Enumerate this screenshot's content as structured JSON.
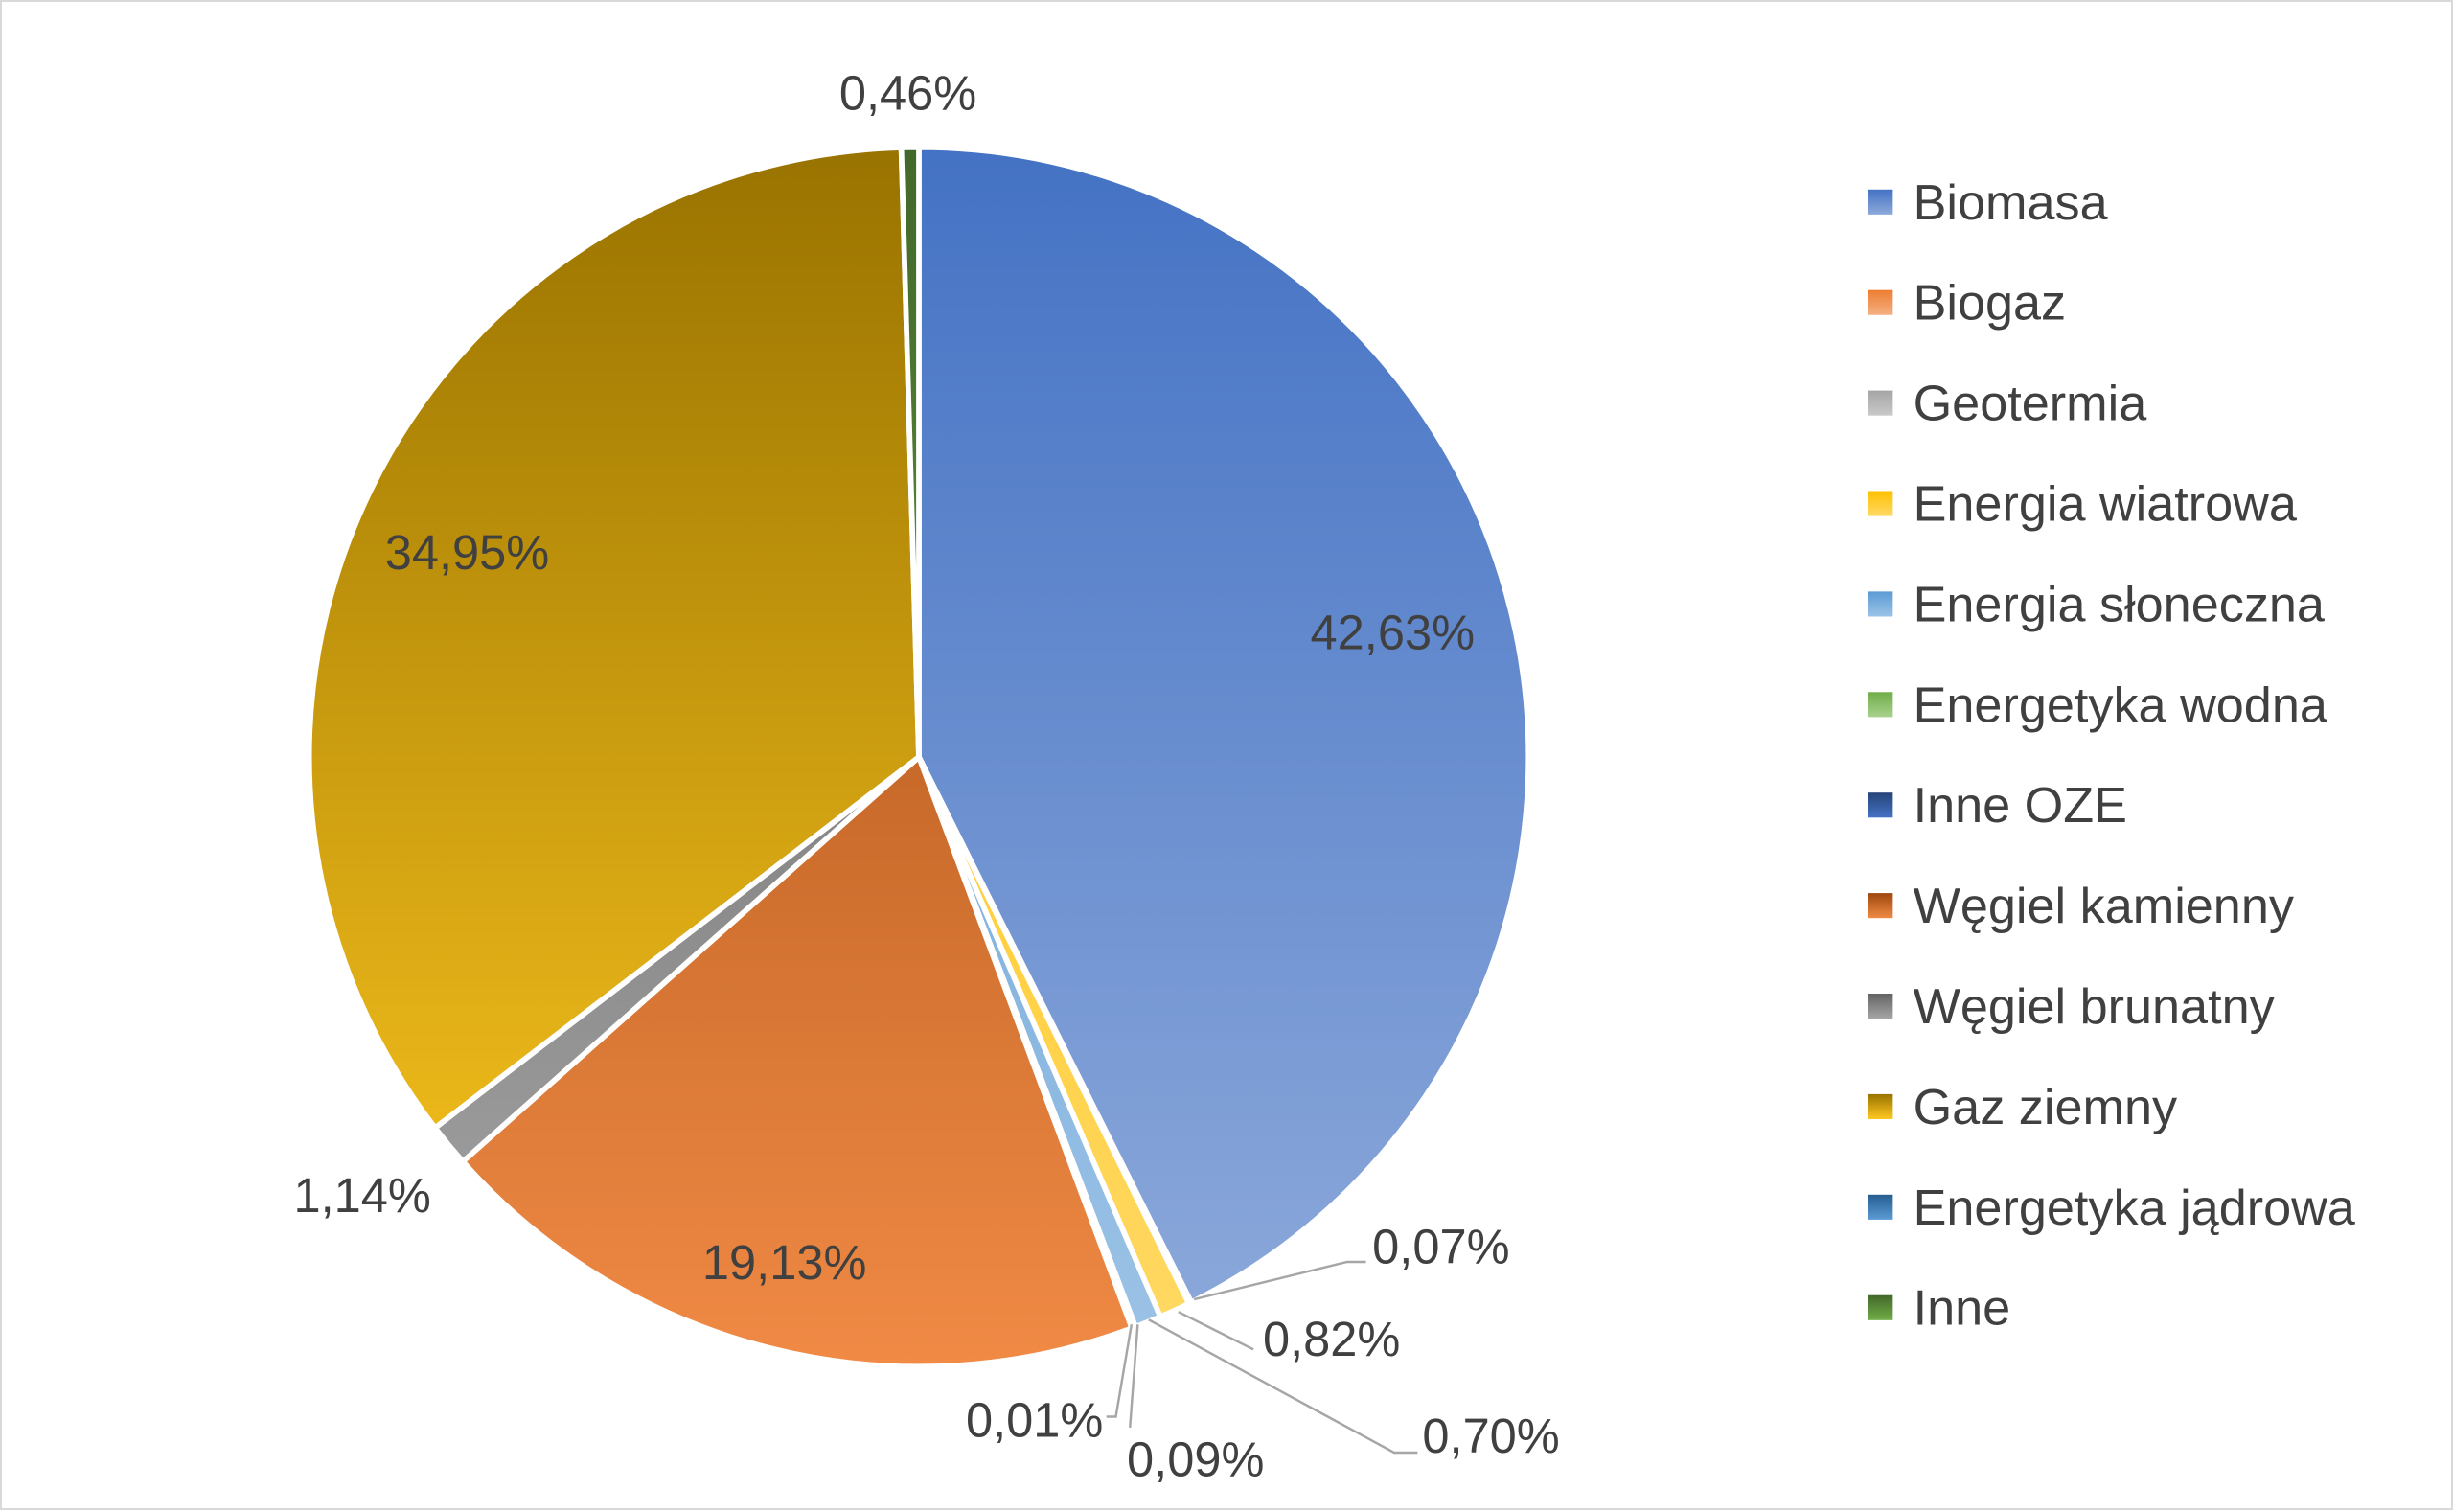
{
  "chart_data": {
    "type": "pie",
    "title": "",
    "legend_position": "right",
    "start_angle": "top, clockwise",
    "slices": [
      {
        "label": "Biomasa",
        "value": 42.63,
        "display": "42,63%",
        "color": "#4472C4",
        "color_light": "#8EAADB"
      },
      {
        "label": "Biogaz",
        "value": 0.07,
        "display": "0,07%",
        "color": "#ED7D31",
        "color_light": "#F4B183"
      },
      {
        "label": "Geotermia",
        "value": 0,
        "display": "",
        "color": "#A5A5A5",
        "color_light": "#C9C9C9"
      },
      {
        "label": "Energia wiatrowa",
        "value": 0.82,
        "display": "0,82%",
        "color": "#FFC000",
        "color_light": "#FFD966"
      },
      {
        "label": "Energia słoneczna",
        "value": 0.7,
        "display": "0,70%",
        "color": "#5B9BD5",
        "color_light": "#9DC3E6"
      },
      {
        "label": "Energetyka wodna",
        "value": 0.09,
        "display": "0,09%",
        "color": "#70AD47",
        "color_light": "#A9D18E"
      },
      {
        "label": "Inne OZE",
        "value": 0.01,
        "display": "0,01%",
        "color": "#264478",
        "color_light": "#4472C4"
      },
      {
        "label": "Węgiel kamienny",
        "value": 19.13,
        "display": "19,13%",
        "color": "#9E480E",
        "color_light": "#F08A45"
      },
      {
        "label": "Węgiel brunatny",
        "value": 1.14,
        "display": "1,14%",
        "color": "#636363",
        "color_light": "#A5A5A5"
      },
      {
        "label": "Gaz ziemny",
        "value": 34.95,
        "display": "34,95%",
        "color": "#997300",
        "color_light": "#FFC820"
      },
      {
        "label": "Energetyka jądrowa",
        "value": 0,
        "display": "",
        "color": "#255E91",
        "color_light": "#5B9BD5"
      },
      {
        "label": "Inne",
        "value": 0.46,
        "display": "0,46%",
        "color": "#43682B",
        "color_light": "#70AD47"
      }
    ]
  }
}
